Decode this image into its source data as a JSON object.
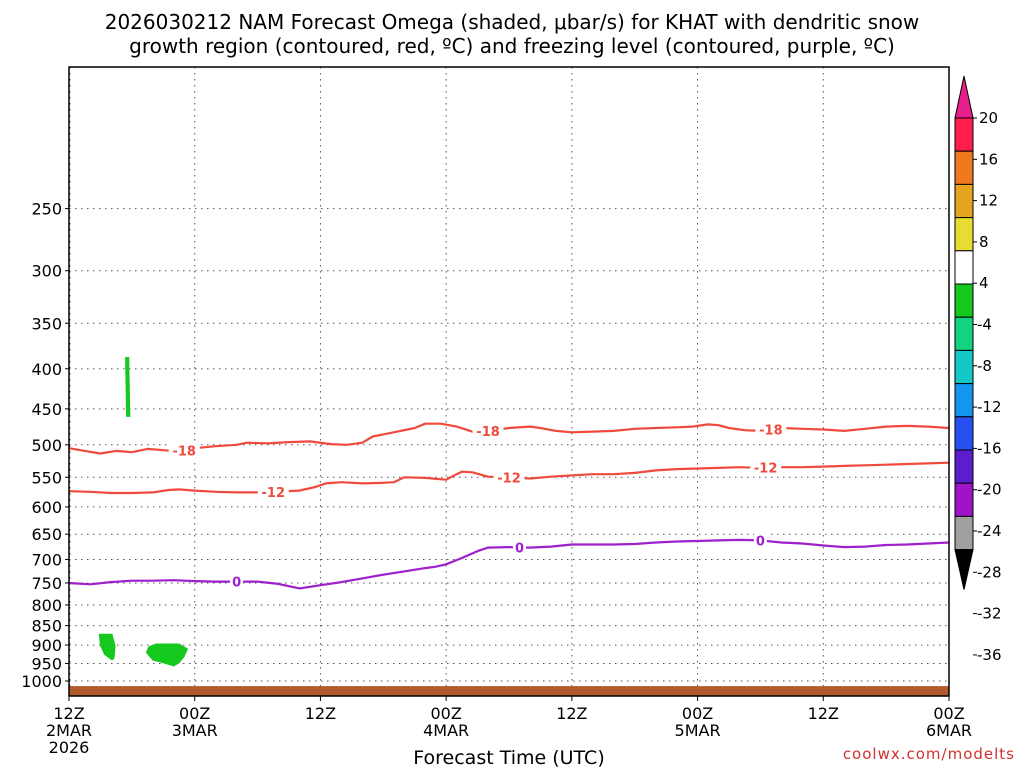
{
  "title": {
    "line1": "2026030212 NAM Forecast Omega (shaded, μbar/s) for KHAT with dendritic snow",
    "line2": "growth region (contoured, red, ºC) and freezing level (contoured, purple, ºC)"
  },
  "credit": "coolwx.com/modelts",
  "chart_data": {
    "type": "area",
    "xlabel": "Forecast Time (UTC)",
    "x_hours_range": [
      0,
      84
    ],
    "y_pressure_range_mb": [
      1045,
      165
    ],
    "y_scale": "log-pressure, inverted",
    "grid": true,
    "x_ticks": [
      {
        "hour": 0,
        "lines": [
          "12Z",
          "2MAR",
          "2026"
        ]
      },
      {
        "hour": 12,
        "lines": [
          "00Z",
          "3MAR"
        ]
      },
      {
        "hour": 24,
        "lines": [
          "12Z"
        ]
      },
      {
        "hour": 36,
        "lines": [
          "00Z",
          "4MAR"
        ]
      },
      {
        "hour": 48,
        "lines": [
          "12Z"
        ]
      },
      {
        "hour": 60,
        "lines": [
          "00Z",
          "5MAR"
        ]
      },
      {
        "hour": 72,
        "lines": [
          "12Z"
        ]
      },
      {
        "hour": 84,
        "lines": [
          "00Z",
          "6MAR"
        ]
      }
    ],
    "y_ticks": [
      250,
      300,
      350,
      400,
      450,
      500,
      550,
      600,
      650,
      700,
      750,
      800,
      850,
      900,
      950,
      1000
    ],
    "series": [
      {
        "name": "-18",
        "color": "#f04a3c",
        "label_hours": [
          11,
          40,
          67
        ],
        "points": [
          [
            0,
            505
          ],
          [
            1.5,
            509
          ],
          [
            3,
            513
          ],
          [
            4.5,
            509
          ],
          [
            6,
            511
          ],
          [
            7.5,
            506
          ],
          [
            9,
            508
          ],
          [
            10.5,
            510
          ],
          [
            12,
            505
          ],
          [
            14,
            502
          ],
          [
            16,
            500
          ],
          [
            17,
            497
          ],
          [
            19,
            498
          ],
          [
            21,
            496
          ],
          [
            23,
            495
          ],
          [
            25,
            499
          ],
          [
            26.5,
            500
          ],
          [
            28,
            497
          ],
          [
            29,
            488
          ],
          [
            31,
            482
          ],
          [
            33,
            476
          ],
          [
            34,
            470
          ],
          [
            35.5,
            470
          ],
          [
            37,
            474
          ],
          [
            38.5,
            481
          ],
          [
            40,
            480
          ],
          [
            42,
            476
          ],
          [
            44,
            474
          ],
          [
            45,
            476
          ],
          [
            46.5,
            480
          ],
          [
            48,
            482
          ],
          [
            50,
            481
          ],
          [
            52,
            480
          ],
          [
            54,
            477
          ],
          [
            56,
            476
          ],
          [
            58,
            475
          ],
          [
            59.5,
            474
          ],
          [
            61,
            471
          ],
          [
            62,
            472
          ],
          [
            63,
            476
          ],
          [
            64.5,
            479
          ],
          [
            66,
            480
          ],
          [
            68,
            476
          ],
          [
            70,
            477
          ],
          [
            72,
            478
          ],
          [
            74,
            480
          ],
          [
            76,
            477
          ],
          [
            78,
            474
          ],
          [
            80,
            473
          ],
          [
            82,
            474
          ],
          [
            84,
            476
          ]
        ]
      },
      {
        "name": "-12",
        "color": "#f04a3c",
        "label_hours": [
          19.5,
          42,
          66.5
        ],
        "points": [
          [
            0,
            573
          ],
          [
            2,
            574
          ],
          [
            4,
            576
          ],
          [
            6,
            576
          ],
          [
            8,
            575
          ],
          [
            9.5,
            571
          ],
          [
            10.5,
            570
          ],
          [
            12,
            572
          ],
          [
            14,
            574
          ],
          [
            16,
            575
          ],
          [
            18,
            575
          ],
          [
            19.5,
            574
          ],
          [
            22,
            572
          ],
          [
            23.5,
            566
          ],
          [
            24.5,
            560
          ],
          [
            26,
            558
          ],
          [
            28,
            560
          ],
          [
            30,
            559
          ],
          [
            31,
            558
          ],
          [
            32,
            550
          ],
          [
            34,
            551
          ],
          [
            36,
            554
          ],
          [
            37,
            545
          ],
          [
            37.5,
            541
          ],
          [
            38.5,
            542
          ],
          [
            40,
            549
          ],
          [
            42,
            550
          ],
          [
            44,
            552
          ],
          [
            46,
            549
          ],
          [
            48,
            547
          ],
          [
            50,
            545
          ],
          [
            52,
            545
          ],
          [
            54,
            543
          ],
          [
            56,
            539
          ],
          [
            58,
            537
          ],
          [
            60,
            536
          ],
          [
            62,
            535
          ],
          [
            64,
            534
          ],
          [
            66,
            535
          ],
          [
            68,
            534
          ],
          [
            70,
            534
          ],
          [
            72,
            533
          ],
          [
            74,
            532
          ],
          [
            76,
            531
          ],
          [
            78,
            530
          ],
          [
            80,
            529
          ],
          [
            82,
            528
          ],
          [
            84,
            527
          ]
        ]
      },
      {
        "name": "0",
        "color": "#9e1fcc",
        "label_hours": [
          16,
          43,
          66
        ],
        "points": [
          [
            0,
            750
          ],
          [
            2,
            753
          ],
          [
            4,
            748
          ],
          [
            6,
            745
          ],
          [
            8,
            745
          ],
          [
            10,
            744
          ],
          [
            12,
            746
          ],
          [
            14,
            747
          ],
          [
            16,
            747
          ],
          [
            18,
            747
          ],
          [
            20,
            752
          ],
          [
            22,
            762
          ],
          [
            24,
            755
          ],
          [
            26,
            748
          ],
          [
            28,
            740
          ],
          [
            30,
            732
          ],
          [
            32,
            725
          ],
          [
            34,
            718
          ],
          [
            35,
            715
          ],
          [
            36,
            710
          ],
          [
            37.5,
            697
          ],
          [
            39,
            683
          ],
          [
            40,
            676
          ],
          [
            42,
            675
          ],
          [
            44,
            676
          ],
          [
            46,
            674
          ],
          [
            48,
            670
          ],
          [
            50,
            670
          ],
          [
            52,
            670
          ],
          [
            54,
            669
          ],
          [
            56,
            666
          ],
          [
            58,
            664
          ],
          [
            60,
            663
          ],
          [
            62,
            662
          ],
          [
            64,
            661
          ],
          [
            66,
            662
          ],
          [
            68,
            666
          ],
          [
            70,
            668
          ],
          [
            72,
            672
          ],
          [
            74,
            675
          ],
          [
            76,
            674
          ],
          [
            78,
            671
          ],
          [
            80,
            670
          ],
          [
            82,
            668
          ],
          [
            84,
            666
          ]
        ]
      }
    ],
    "omega_shading": {
      "legend": [
        "20",
        "16",
        "12",
        "8",
        "4",
        "-4",
        "-8",
        "-12",
        "-16",
        "-20",
        "-24",
        "-28",
        "-32",
        "-36"
      ],
      "colors": [
        "#ff1e4e",
        "#f0781e",
        "#e6a51e",
        "#e6dc32",
        "#ffffff",
        "#14c81e",
        "#14d282",
        "#14c8c8",
        "#1496f0",
        "#2850f0",
        "#5a1ecc",
        "#a014c8",
        "#a0a0a0"
      ],
      "regions": [
        {
          "level": "-4",
          "points": [
            [
              5.4,
              387
            ],
            [
              5.7,
              387
            ],
            [
              5.8,
              460
            ],
            [
              5.5,
              460
            ]
          ]
        },
        {
          "level": "-4",
          "points": [
            [
              2.9,
              872
            ],
            [
              4.1,
              872
            ],
            [
              4.4,
              903
            ],
            [
              4.3,
              935
            ],
            [
              4.1,
              940
            ],
            [
              3.4,
              925
            ],
            [
              3.0,
              900
            ]
          ]
        },
        {
          "level": "-4",
          "points": [
            [
              7.6,
              905
            ],
            [
              8.3,
              897
            ],
            [
              10.5,
              897
            ],
            [
              11.3,
              910
            ],
            [
              11.0,
              930
            ],
            [
              10.5,
              948
            ],
            [
              10.0,
              957
            ],
            [
              9.0,
              948
            ],
            [
              8.0,
              940
            ],
            [
              7.4,
              920
            ]
          ]
        }
      ]
    },
    "surface_band": {
      "color": "#b05a2e",
      "pressure_top_mb": 1015
    }
  }
}
